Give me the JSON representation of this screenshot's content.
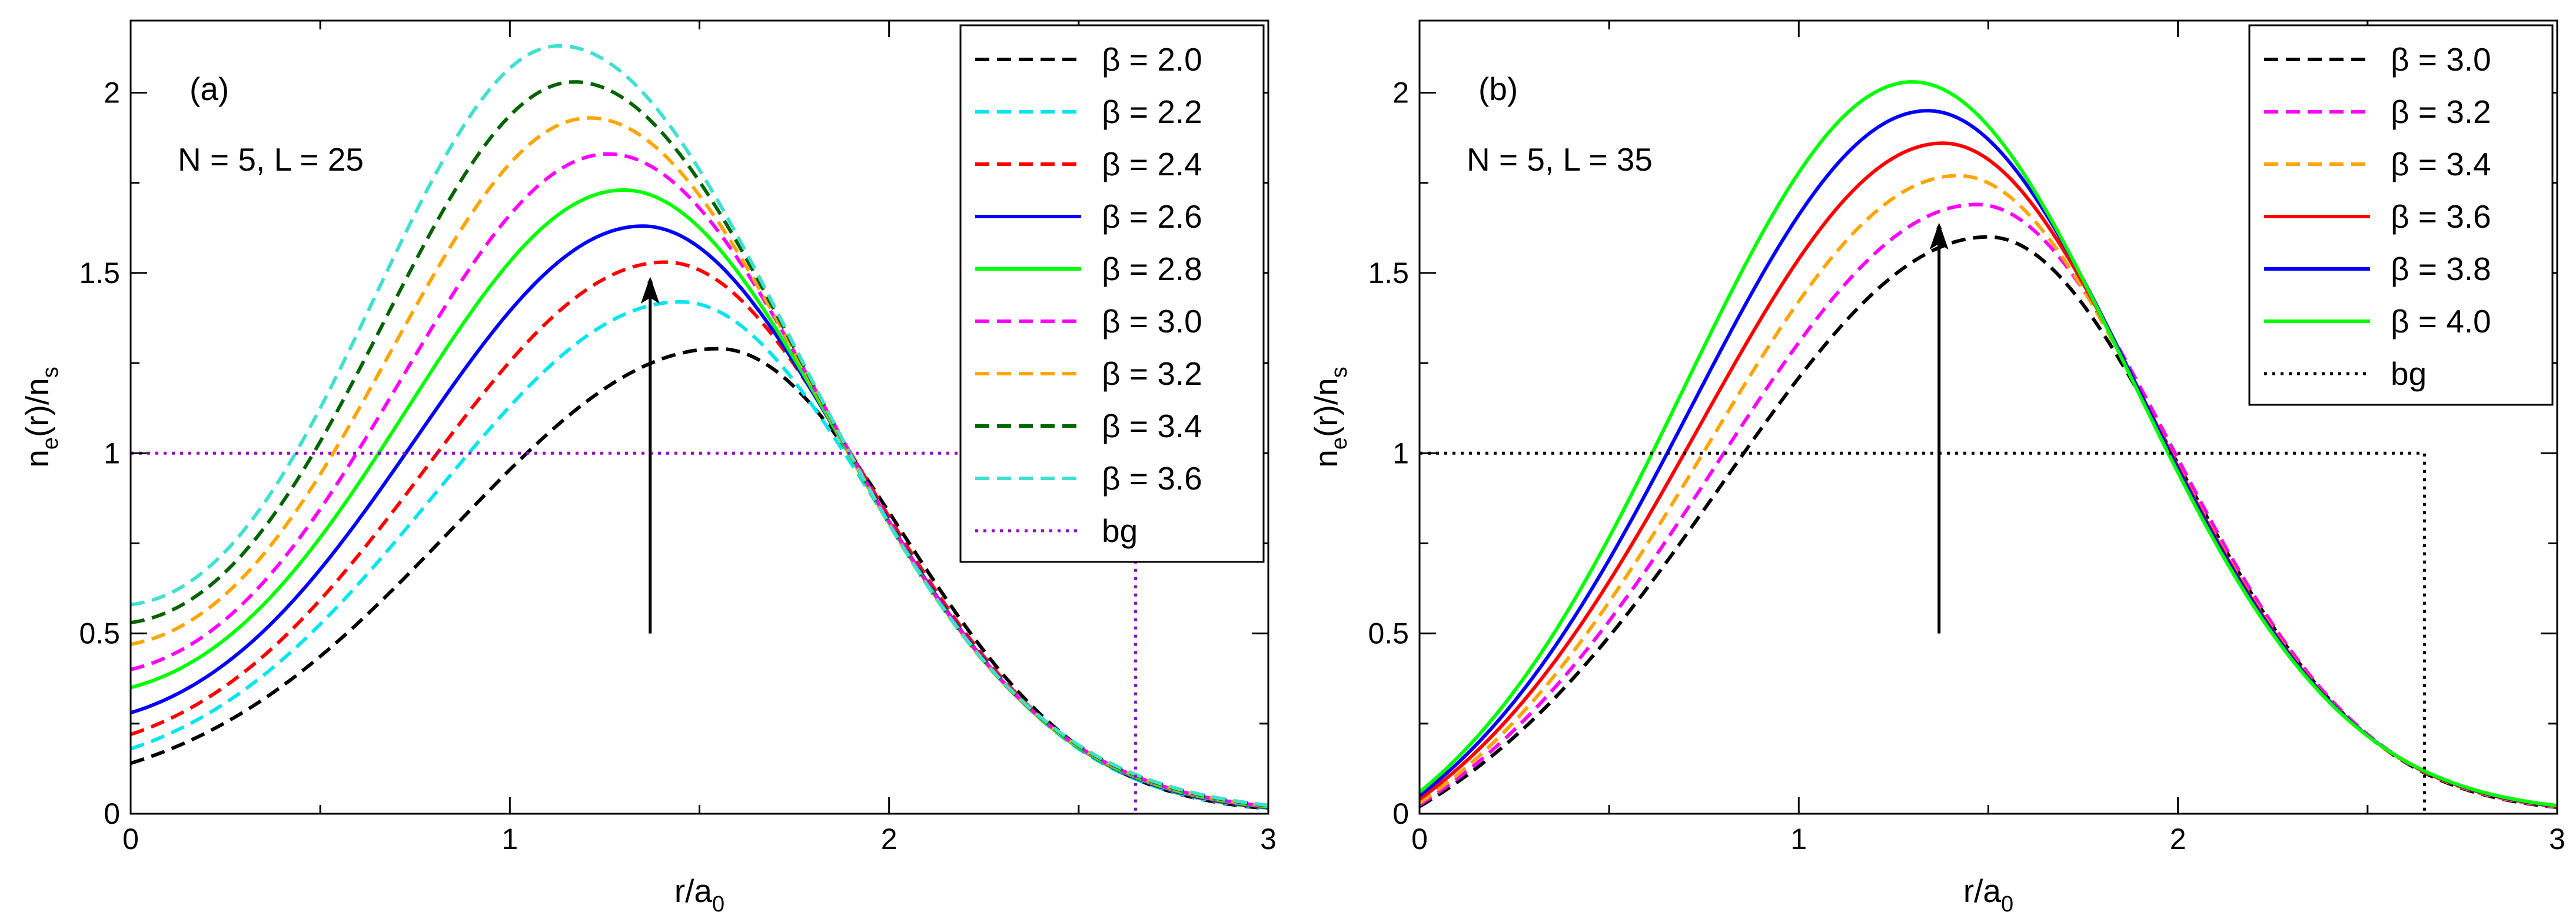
{
  "chart_data": [
    {
      "type": "line",
      "panel_label": "(a)",
      "annotation": "N = 5, L = 25",
      "xlabel": "r/a",
      "xlabel_sub": "0",
      "ylabel_parts": [
        "n",
        "e",
        "(r)/n",
        "s"
      ],
      "xlim": [
        0,
        3
      ],
      "ylim": [
        0,
        2.2
      ],
      "xticks": [
        0,
        1,
        2,
        3
      ],
      "xtick_labels": [
        "0",
        "1",
        "2",
        "3"
      ],
      "yticks": [
        0,
        0.5,
        1,
        1.5,
        2
      ],
      "ytick_labels": [
        "0",
        "0.5",
        "1",
        "1.5",
        "2"
      ],
      "legend_position": "top-right",
      "arrow": {
        "x": 1.37,
        "y_start": 0.5,
        "y_end": 1.48
      },
      "series": [
        {
          "name": "β = 2.0",
          "style": "dashed",
          "color": "#000000",
          "peak_r": 1.55,
          "peak_n": 1.29,
          "value_at_0": 0.14,
          "value_at_3": 0.01
        },
        {
          "name": "β = 2.2",
          "style": "dashed",
          "color": "#00e5ee",
          "peak_r": 1.45,
          "peak_n": 1.42,
          "value_at_0": 0.18,
          "value_at_3": 0.005
        },
        {
          "name": "β = 2.4",
          "style": "dashed",
          "color": "#ff0000",
          "peak_r": 1.41,
          "peak_n": 1.53,
          "value_at_0": 0.22,
          "value_at_3": 0.004
        },
        {
          "name": "β = 2.6",
          "style": "solid",
          "color": "#0000ff",
          "peak_r": 1.35,
          "peak_n": 1.63,
          "value_at_0": 0.28,
          "value_at_3": 0.003
        },
        {
          "name": "β = 2.8",
          "style": "solid",
          "color": "#00ff00",
          "peak_r": 1.3,
          "peak_n": 1.73,
          "value_at_0": 0.35,
          "value_at_3": 0.002
        },
        {
          "name": "β = 3.0",
          "style": "dashed",
          "color": "#ff00ff",
          "peak_r": 1.26,
          "peak_n": 1.83,
          "value_at_0": 0.4,
          "value_at_3": 0.002
        },
        {
          "name": "β = 3.2",
          "style": "dashed",
          "color": "#ffa500",
          "peak_r": 1.21,
          "peak_n": 1.93,
          "value_at_0": 0.47,
          "value_at_3": 0.001
        },
        {
          "name": "β = 3.4",
          "style": "dashed",
          "color": "#006400",
          "peak_r": 1.17,
          "peak_n": 2.03,
          "value_at_0": 0.53,
          "value_at_3": 0.001
        },
        {
          "name": "β = 3.6",
          "style": "dashed",
          "color": "#40e0d0",
          "peak_r": 1.13,
          "peak_n": 2.13,
          "value_at_0": 0.58,
          "value_at_3": 0.001
        },
        {
          "name": "bg",
          "style": "dotted",
          "color": "#9400d3",
          "step": {
            "value": 1,
            "until": 2.65
          }
        }
      ]
    },
    {
      "type": "line",
      "panel_label": "(b)",
      "annotation": "N = 5, L = 35",
      "xlabel": "r/a",
      "xlabel_sub": "0",
      "ylabel_parts": [
        "n",
        "e",
        "(r)/n",
        "s"
      ],
      "xlim": [
        0,
        3
      ],
      "ylim": [
        0,
        2.2
      ],
      "xticks": [
        0,
        1,
        2,
        3
      ],
      "xtick_labels": [
        "0",
        "1",
        "2",
        "3"
      ],
      "yticks": [
        0,
        0.5,
        1,
        1.5,
        2
      ],
      "ytick_labels": [
        "0",
        "0.5",
        "1",
        "1.5",
        "2"
      ],
      "legend_position": "top-right",
      "arrow": {
        "x": 1.37,
        "y_start": 0.5,
        "y_end": 1.63
      },
      "series": [
        {
          "name": "β = 3.0",
          "style": "dashed",
          "color": "#000000",
          "peak_r": 1.5,
          "peak_n": 1.6,
          "value_at_0": 0.02,
          "value_at_3": 0.002
        },
        {
          "name": "β = 3.2",
          "style": "dashed",
          "color": "#ff00ff",
          "peak_r": 1.47,
          "peak_n": 1.69,
          "value_at_0": 0.025,
          "value_at_3": 0.001
        },
        {
          "name": "β = 3.4",
          "style": "dashed",
          "color": "#ffa500",
          "peak_r": 1.42,
          "peak_n": 1.77,
          "value_at_0": 0.03,
          "value_at_3": 0.001
        },
        {
          "name": "β = 3.6",
          "style": "solid",
          "color": "#ff0000",
          "peak_r": 1.38,
          "peak_n": 1.86,
          "value_at_0": 0.04,
          "value_at_3": 0.001
        },
        {
          "name": "β = 3.8",
          "style": "solid",
          "color": "#0000ff",
          "peak_r": 1.34,
          "peak_n": 1.95,
          "value_at_0": 0.05,
          "value_at_3": 0.0
        },
        {
          "name": "β = 4.0",
          "style": "solid",
          "color": "#00ff00",
          "peak_r": 1.3,
          "peak_n": 2.03,
          "value_at_0": 0.06,
          "value_at_3": 0.0
        },
        {
          "name": "bg",
          "style": "dotted",
          "color": "#000000",
          "step": {
            "value": 1,
            "until": 2.65
          }
        }
      ]
    }
  ]
}
